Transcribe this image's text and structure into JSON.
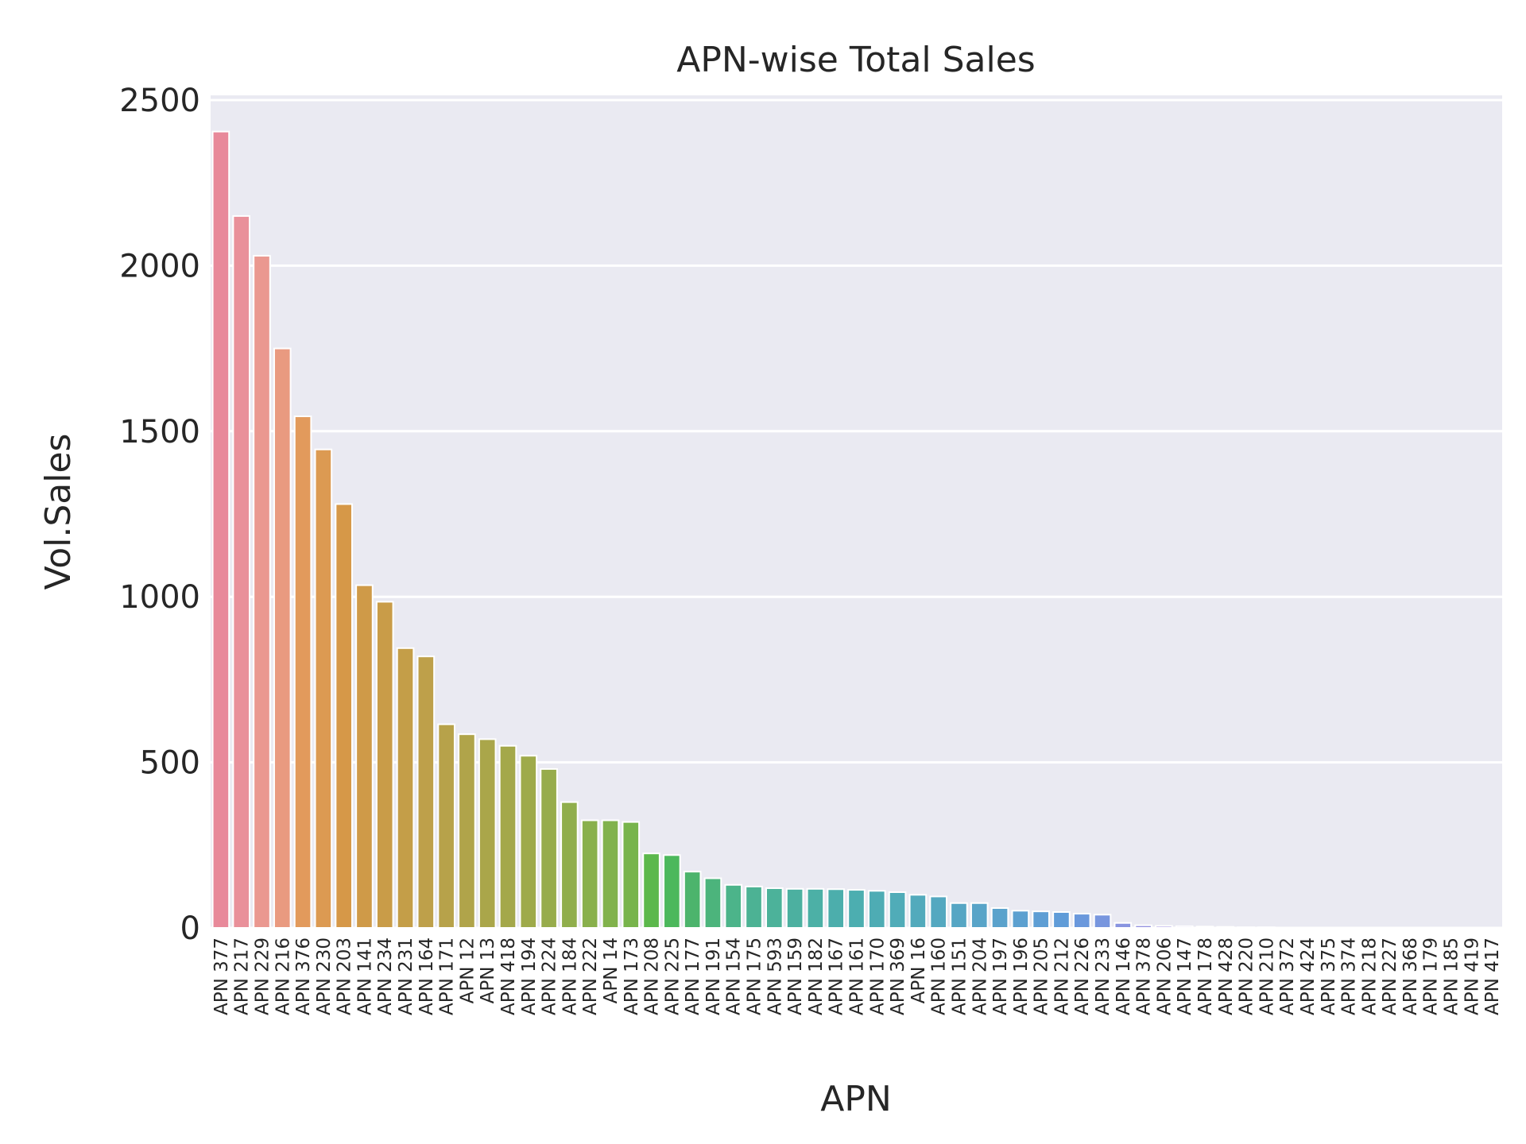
{
  "chart_data": {
    "type": "bar",
    "title": "APN-wise Total Sales",
    "xlabel": "APN",
    "ylabel": "Vol.Sales",
    "ylim": [
      0,
      2500
    ],
    "yticks": [
      0,
      500,
      1000,
      1500,
      2000,
      2500
    ],
    "grid": true,
    "background": "#eaeaf2",
    "categories": [
      "APN 377",
      "APN 217",
      "APN 229",
      "APN 216",
      "APN 376",
      "APN 230",
      "APN 203",
      "APN 141",
      "APN 234",
      "APN 231",
      "APN 164",
      "APN 171",
      "APN 12",
      "APN 13",
      "APN 418",
      "APN 194",
      "APN 224",
      "APN 184",
      "APN 222",
      "APN 14",
      "APN 173",
      "APN 208",
      "APN 225",
      "APN 177",
      "APN 191",
      "APN 154",
      "APN 175",
      "APN 593",
      "APN 159",
      "APN 182",
      "APN 167",
      "APN 161",
      "APN 170",
      "APN 369",
      "APN 16",
      "APN 160",
      "APN 151",
      "APN 204",
      "APN 197",
      "APN 196",
      "APN 205",
      "APN 212",
      "APN 226",
      "APN 233",
      "APN 146",
      "APN 378",
      "APN 206",
      "APN 147",
      "APN 178",
      "APN 428",
      "APN 220",
      "APN 210",
      "APN 372",
      "APN 424",
      "APN 375",
      "APN 374",
      "APN 218",
      "APN 227",
      "APN 368",
      "APN 179",
      "APN 185",
      "APN 419",
      "APN 417"
    ],
    "values": [
      2405,
      2150,
      2030,
      1750,
      1545,
      1445,
      1280,
      1035,
      985,
      845,
      820,
      615,
      585,
      570,
      550,
      520,
      480,
      380,
      325,
      325,
      320,
      225,
      220,
      170,
      150,
      130,
      125,
      120,
      118,
      118,
      117,
      115,
      112,
      108,
      100,
      95,
      75,
      75,
      60,
      52,
      50,
      48,
      43,
      40,
      15,
      8,
      6,
      5,
      4,
      3,
      2,
      2,
      1,
      1,
      1,
      1,
      1,
      1,
      1,
      1,
      1,
      1,
      1
    ],
    "colors": [
      "#e8899a",
      "#e9909a",
      "#ea9890",
      "#e99a80",
      "#e29a5c",
      "#dc9a52",
      "#d69848",
      "#cf9a48",
      "#c99c48",
      "#c49e48",
      "#bea04a",
      "#b7a24a",
      "#b0a44a",
      "#aaa64a",
      "#a4a84a",
      "#9eaa4a",
      "#97ac4c",
      "#90ae4c",
      "#89b04c",
      "#81b24c",
      "#78b44c",
      "#5cb84c",
      "#4cb85c",
      "#4cb46c",
      "#4cb47c",
      "#4cb48a",
      "#4cb294",
      "#4cb29a",
      "#4cb0a0",
      "#4cb0a6",
      "#4caeac",
      "#4caeb0",
      "#4eacb4",
      "#50acb8",
      "#52aabc",
      "#54a8c0",
      "#56a6c4",
      "#58a4c8",
      "#5aa2cc",
      "#5ca0d0",
      "#5e9ed4",
      "#609cd8",
      "#6a98dc",
      "#7896de",
      "#8894e0",
      "#9492e0",
      "#a290e0",
      "#ae8ee0",
      "#b88ce0",
      "#c28ae0",
      "#cc88de",
      "#d686dc",
      "#de84da",
      "#e484d6",
      "#e886d2",
      "#ea88cc",
      "#ec8ac6",
      "#ec8cc0",
      "#ec8eba",
      "#ec90b4",
      "#ea8eae",
      "#e88ca8",
      "#e68aa2"
    ]
  }
}
